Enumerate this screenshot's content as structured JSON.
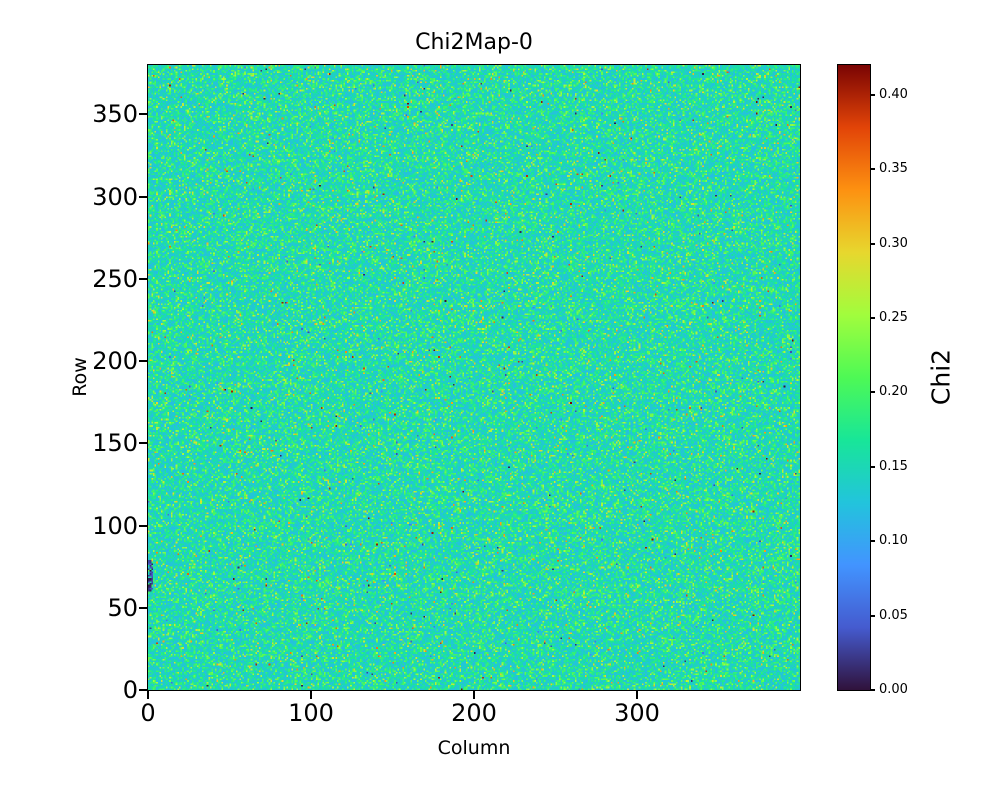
{
  "figure": {
    "background": "#ffffff",
    "text_color": "#000000",
    "spine_color": "#000000"
  },
  "chart_data": {
    "type": "heatmap",
    "title": "Chi2Map-0",
    "xlabel": "Column",
    "ylabel": "Row",
    "colorbar_label": "Chi2",
    "x_range": [
      0,
      400
    ],
    "y_range": [
      0,
      380
    ],
    "grid_size": {
      "cols": 400,
      "rows": 380
    },
    "x_ticks": [
      0,
      100,
      200,
      300
    ],
    "y_ticks": [
      0,
      50,
      100,
      150,
      200,
      250,
      300,
      350
    ],
    "colorbar_ticks": [
      "0.00",
      "0.05",
      "0.10",
      "0.15",
      "0.20",
      "0.25",
      "0.30",
      "0.35",
      "0.40"
    ],
    "vmin": 0.0,
    "vmax": 0.42,
    "grid": false,
    "colormap": "turbo",
    "colormap_stops": [
      {
        "t": 0.0,
        "color": "#30123b"
      },
      {
        "t": 0.1,
        "color": "#455bcf"
      },
      {
        "t": 0.2,
        "color": "#4294ff"
      },
      {
        "t": 0.3,
        "color": "#22c4dc"
      },
      {
        "t": 0.4,
        "color": "#18e698"
      },
      {
        "t": 0.5,
        "color": "#4ef955"
      },
      {
        "t": 0.6,
        "color": "#a1fd3d"
      },
      {
        "t": 0.7,
        "color": "#e7d72e"
      },
      {
        "t": 0.8,
        "color": "#fd9111"
      },
      {
        "t": 0.9,
        "color": "#e24408"
      },
      {
        "t": 1.0,
        "color": "#7a0403"
      }
    ],
    "values_model": {
      "description": "Per-pixel Chi2 noise field: values mostly 0.10-0.20 (cyan/green) with frequent yellow-green speckles and sparse dark-blue near-zero dots",
      "distribution": "gaussian",
      "mean": 0.152,
      "std": 0.036,
      "skew": 0.01,
      "seed": 42,
      "low_outlier_fraction": 0.002,
      "high_outlier_fraction": 0.0004,
      "anomaly": {
        "description": "small near-zero dark blob at the left edge of the map",
        "col_range": [
          0,
          2
        ],
        "row_range": [
          60,
          78
        ]
      }
    }
  }
}
